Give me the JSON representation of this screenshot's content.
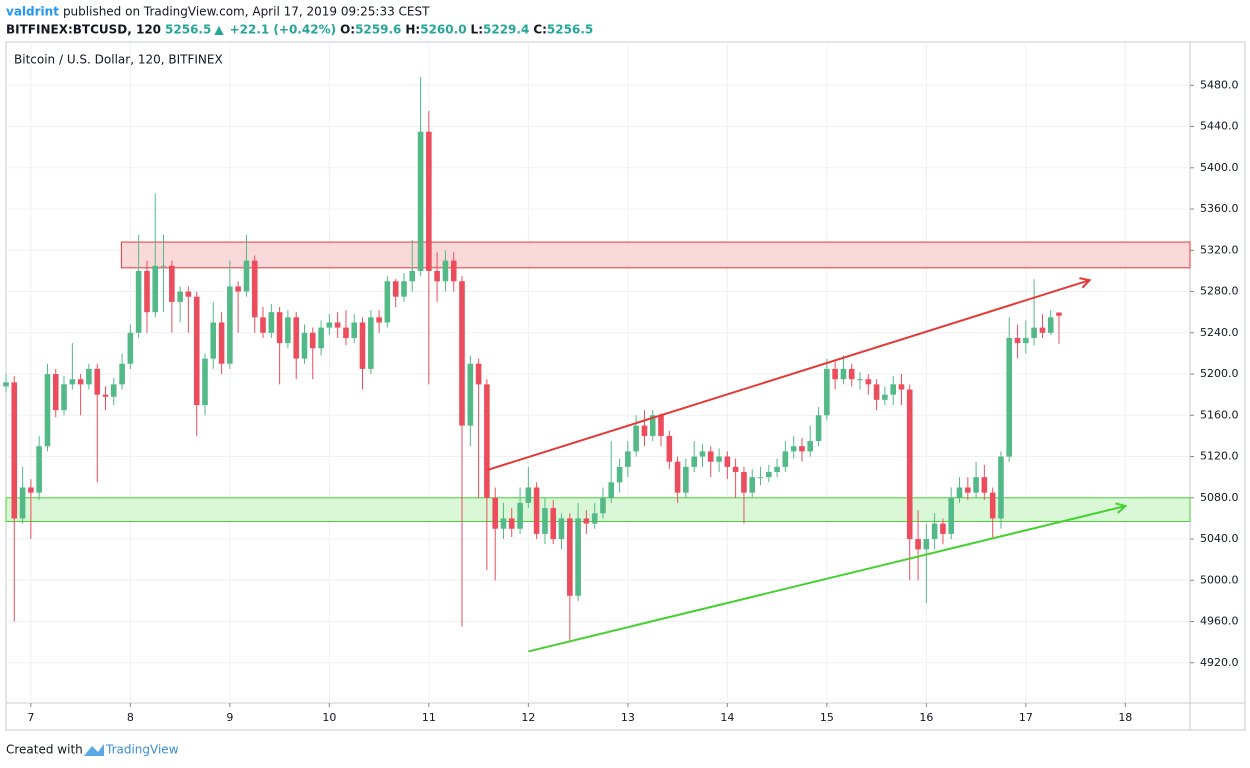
{
  "header": {
    "author": "valdrint",
    "published": "published on TradingView.com, April 17, 2019 09:25:33 CEST",
    "symbol": "BITFINEX:BTCUSD, 120",
    "last": "5256.5",
    "change_arrow": "▲",
    "change": "+22.1 (+0.42%)",
    "o_label": "O:",
    "o": "5259.6",
    "h_label": "H:",
    "h": "5260.0",
    "l_label": "L:",
    "l": "5229.4",
    "c_label": "C:",
    "c": "5256.5"
  },
  "footer": {
    "created": "Created with",
    "brand": "TradingView"
  },
  "chart_data": {
    "type": "candlestick",
    "title": "Bitcoin / U.S. Dollar, 120, BITFINEX",
    "up_color": "#53b987",
    "down_color": "#eb4d5c",
    "grid": true,
    "xlim": [
      6.75,
      18.65
    ],
    "xticks": [
      7,
      8,
      9,
      10,
      11,
      12,
      13,
      14,
      15,
      16,
      17,
      18
    ],
    "ylim": [
      4881,
      5522
    ],
    "yticks": [
      {
        "value": 4920,
        "label": "4920.0"
      },
      {
        "value": 4960,
        "label": "4960.0"
      },
      {
        "value": 5000,
        "label": "5000.0"
      },
      {
        "value": 5040,
        "label": "5040.0"
      },
      {
        "value": 5080,
        "label": "5080.0"
      },
      {
        "value": 5120,
        "label": "5120.0"
      },
      {
        "value": 5160,
        "label": "5160.0"
      },
      {
        "value": 5200,
        "label": "5200.0"
      },
      {
        "value": 5240,
        "label": "5240.0"
      },
      {
        "value": 5280,
        "label": "5280.0"
      },
      {
        "value": 5320,
        "label": "5320.0"
      },
      {
        "value": 5360,
        "label": "5360.0"
      },
      {
        "value": 5400,
        "label": "5400.0"
      },
      {
        "value": 5440,
        "label": "5440.0"
      },
      {
        "value": 5480,
        "label": "5480.0"
      }
    ],
    "x": [
      6.75,
      6.833,
      6.917,
      7,
      7.083,
      7.167,
      7.25,
      7.333,
      7.417,
      7.5,
      7.583,
      7.667,
      7.75,
      7.833,
      7.917,
      8,
      8.083,
      8.167,
      8.25,
      8.333,
      8.417,
      8.5,
      8.583,
      8.667,
      8.75,
      8.833,
      8.917,
      9,
      9.083,
      9.167,
      9.25,
      9.333,
      9.417,
      9.5,
      9.583,
      9.667,
      9.75,
      9.833,
      9.917,
      10,
      10.083,
      10.167,
      10.25,
      10.333,
      10.417,
      10.5,
      10.583,
      10.667,
      10.75,
      10.833,
      10.917,
      11,
      11.083,
      11.167,
      11.25,
      11.333,
      11.417,
      11.5,
      11.583,
      11.667,
      11.75,
      11.833,
      11.917,
      12,
      12.083,
      12.167,
      12.25,
      12.333,
      12.417,
      12.5,
      12.583,
      12.667,
      12.75,
      12.833,
      12.917,
      13,
      13.083,
      13.167,
      13.25,
      13.333,
      13.417,
      13.5,
      13.583,
      13.667,
      13.75,
      13.833,
      13.917,
      14,
      14.083,
      14.167,
      14.25,
      14.333,
      14.417,
      14.5,
      14.583,
      14.667,
      14.75,
      14.833,
      14.917,
      15,
      15.083,
      15.167,
      15.25,
      15.333,
      15.417,
      15.5,
      15.583,
      15.667,
      15.75,
      15.833,
      15.917,
      16,
      16.083,
      16.167,
      16.25,
      16.333,
      16.417,
      16.5,
      16.583,
      16.667,
      16.75,
      16.833,
      16.917,
      17,
      17.083,
      17.167,
      17.25,
      17.333
    ],
    "open": [
      5188,
      5192,
      5060,
      5090,
      5085,
      5130,
      5200,
      5165,
      5190,
      5195,
      5190,
      5205,
      5180,
      5178,
      5190,
      5210,
      5240,
      5300,
      5260,
      5305,
      5305,
      5270,
      5280,
      5275,
      5170,
      5215,
      5250,
      5210,
      5285,
      5280,
      5310,
      5255,
      5240,
      5260,
      5230,
      5255,
      5215,
      5240,
      5225,
      5245,
      5250,
      5245,
      5235,
      5250,
      5205,
      5255,
      5250,
      5290,
      5275,
      5290,
      5300,
      5435,
      5300,
      5290,
      5310,
      5290,
      5150,
      5210,
      5190,
      5080,
      5050,
      5060,
      5050,
      5075,
      5090,
      5045,
      5070,
      5040,
      5060,
      4985,
      5060,
      5055,
      5065,
      5080,
      5095,
      5110,
      5125,
      5150,
      5140,
      5160,
      5140,
      5115,
      5085,
      5110,
      5120,
      5125,
      5115,
      5120,
      5110,
      5105,
      5085,
      5100,
      5100,
      5105,
      5110,
      5125,
      5130,
      5125,
      5135,
      5160,
      5205,
      5195,
      5205,
      5195,
      5195,
      5190,
      5175,
      5180,
      5190,
      5185,
      5040,
      5030,
      5040,
      5055,
      5045,
      5080,
      5090,
      5085,
      5100,
      5085,
      5060,
      5120,
      5235,
      5230,
      5235,
      5245,
      5240,
      5259.6
    ],
    "high": [
      5200,
      5198,
      5110,
      5098,
      5140,
      5210,
      5205,
      5198,
      5230,
      5200,
      5210,
      5210,
      5188,
      5196,
      5220,
      5248,
      5335,
      5310,
      5375,
      5335,
      5310,
      5285,
      5285,
      5280,
      5220,
      5270,
      5260,
      5310,
      5290,
      5335,
      5315,
      5265,
      5268,
      5265,
      5262,
      5260,
      5248,
      5245,
      5252,
      5258,
      5260,
      5262,
      5258,
      5255,
      5262,
      5262,
      5295,
      5292,
      5298,
      5330,
      5488,
      5455,
      5318,
      5320,
      5318,
      5295,
      5218,
      5215,
      5195,
      5090,
      5075,
      5070,
      5090,
      5110,
      5095,
      5080,
      5078,
      5065,
      5065,
      5075,
      5068,
      5075,
      5090,
      5135,
      5118,
      5135,
      5160,
      5165,
      5165,
      5162,
      5145,
      5120,
      5118,
      5135,
      5132,
      5130,
      5128,
      5125,
      5118,
      5110,
      5108,
      5110,
      5112,
      5118,
      5135,
      5140,
      5138,
      5150,
      5168,
      5215,
      5212,
      5218,
      5210,
      5202,
      5200,
      5195,
      5188,
      5198,
      5200,
      5190,
      5068,
      5055,
      5065,
      5060,
      5090,
      5100,
      5100,
      5115,
      5112,
      5090,
      5125,
      5255,
      5248,
      5252,
      5292,
      5258,
      5262,
      5260.0
    ],
    "low": [
      5182,
      4960,
      5055,
      5040,
      5078,
      5125,
      5158,
      5160,
      5185,
      5160,
      5185,
      5095,
      5165,
      5170,
      5185,
      5205,
      5235,
      5240,
      5255,
      5260,
      5240,
      5250,
      5240,
      5140,
      5160,
      5205,
      5200,
      5205,
      5240,
      5275,
      5240,
      5235,
      5235,
      5190,
      5225,
      5195,
      5210,
      5195,
      5218,
      5238,
      5235,
      5228,
      5230,
      5185,
      5200,
      5240,
      5245,
      5265,
      5270,
      5280,
      5295,
      5190,
      5270,
      5280,
      5280,
      4955,
      5130,
      5080,
      5010,
      5000,
      5040,
      5042,
      5045,
      5070,
      5040,
      5035,
      5035,
      5030,
      4940,
      4980,
      5045,
      5050,
      5060,
      5075,
      5085,
      5100,
      5120,
      5130,
      5135,
      5130,
      5108,
      5075,
      5080,
      5105,
      5110,
      5100,
      5105,
      5098,
      5080,
      5055,
      5080,
      5092,
      5095,
      5100,
      5105,
      5118,
      5115,
      5120,
      5130,
      5155,
      5185,
      5190,
      5188,
      5185,
      5180,
      5165,
      5170,
      5170,
      5170,
      5000,
      5000,
      4978,
      5030,
      5035,
      5040,
      5075,
      5078,
      5080,
      5078,
      5040,
      5050,
      5115,
      5215,
      5220,
      5228,
      5235,
      5238,
      5229.4
    ],
    "close": [
      5192,
      5060,
      5090,
      5085,
      5130,
      5200,
      5165,
      5190,
      5195,
      5190,
      5205,
      5180,
      5178,
      5190,
      5210,
      5240,
      5300,
      5260,
      5305,
      5305,
      5270,
      5280,
      5275,
      5170,
      5215,
      5250,
      5210,
      5285,
      5280,
      5310,
      5255,
      5240,
      5260,
      5230,
      5255,
      5215,
      5240,
      5225,
      5245,
      5250,
      5245,
      5235,
      5250,
      5205,
      5255,
      5250,
      5290,
      5275,
      5290,
      5300,
      5435,
      5300,
      5290,
      5310,
      5290,
      5150,
      5210,
      5190,
      5080,
      5050,
      5060,
      5050,
      5075,
      5090,
      5045,
      5070,
      5040,
      5060,
      4985,
      5060,
      5055,
      5065,
      5080,
      5095,
      5110,
      5125,
      5150,
      5140,
      5160,
      5140,
      5115,
      5085,
      5110,
      5120,
      5125,
      5115,
      5120,
      5110,
      5105,
      5085,
      5100,
      5100,
      5105,
      5110,
      5125,
      5130,
      5125,
      5135,
      5160,
      5205,
      5195,
      5205,
      5195,
      5195,
      5190,
      5175,
      5180,
      5190,
      5185,
      5040,
      5030,
      5040,
      5055,
      5045,
      5080,
      5090,
      5085,
      5100,
      5085,
      5060,
      5120,
      5235,
      5230,
      5235,
      5245,
      5240,
      5255,
      5256.5
    ],
    "zones": [
      {
        "range": [
          5303,
          5328
        ],
        "x_start": 7.91,
        "fill": "#f8d2d2",
        "stroke": "#e53935"
      },
      {
        "range": [
          5057,
          5080
        ],
        "x_start": 6.75,
        "fill": "#d4f7d0",
        "stroke": "#4cd137"
      }
    ],
    "trend_lines": [
      {
        "points": [
          [
            11.59,
            5107
          ],
          [
            17.64,
            5291
          ]
        ],
        "color": "#e53935"
      },
      {
        "points": [
          [
            12.0,
            4931
          ],
          [
            18.0,
            5072
          ]
        ],
        "color": "#45d130"
      }
    ]
  }
}
